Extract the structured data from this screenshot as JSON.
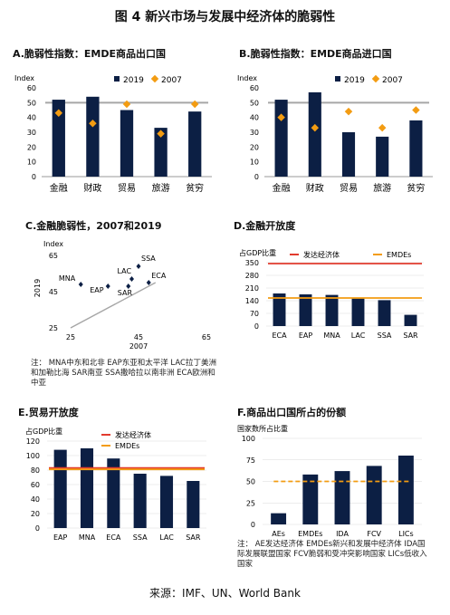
{
  "figure_title": "图 4  新兴市场与发展中经济体的脆弱性",
  "source": "来源：IMF、UN、World Bank",
  "colors": {
    "bar": "#0c1f44",
    "dot2007": "#f39c12",
    "line": "#a6a6a6",
    "red": "#e23b2e",
    "orange": "#f39c12",
    "grid": "#d9d9d9"
  },
  "chart_data": [
    {
      "id": "A",
      "type": "bar",
      "title": "A.脆弱性指数：EMDE商品出口国",
      "ylabel": "Index",
      "ylim": [
        0,
        60
      ],
      "yticks": [
        0,
        10,
        20,
        30,
        40,
        50,
        60
      ],
      "categories": [
        "金融",
        "财政",
        "贸易",
        "旅游",
        "贫穷"
      ],
      "series": [
        {
          "name": "2019",
          "type": "bar",
          "values": [
            52,
            54,
            45,
            33,
            44
          ]
        },
        {
          "name": "2007",
          "type": "marker",
          "values": [
            43,
            36,
            49,
            29,
            49
          ]
        }
      ],
      "reference_line": 50
    },
    {
      "id": "B",
      "type": "bar",
      "title": "B.脆弱性指数：EMDE商品进口国",
      "ylabel": "Index",
      "ylim": [
        0,
        60
      ],
      "yticks": [
        0,
        10,
        20,
        30,
        40,
        50,
        60
      ],
      "categories": [
        "金融",
        "财政",
        "贸易",
        "旅游",
        "贫穷"
      ],
      "series": [
        {
          "name": "2019",
          "type": "bar",
          "values": [
            52,
            57,
            30,
            27,
            38
          ]
        },
        {
          "name": "2007",
          "type": "marker",
          "values": [
            40,
            33,
            44,
            33,
            45
          ]
        }
      ],
      "reference_line": 50
    },
    {
      "id": "C",
      "type": "scatter",
      "title": "C.金融脆弱性，2007和2019",
      "ylabel_top": "Index",
      "ylabel": "2019",
      "xlabel": "2007",
      "xlim": [
        25,
        65
      ],
      "ylim": [
        25,
        65
      ],
      "xticks": [
        25,
        45,
        65
      ],
      "yticks": [
        25,
        45,
        65
      ],
      "points": [
        {
          "label": "SSA",
          "x": 45,
          "y": 59
        },
        {
          "label": "MNA",
          "x": 28,
          "y": 49
        },
        {
          "label": "LAC",
          "x": 43,
          "y": 52
        },
        {
          "label": "ECA",
          "x": 48,
          "y": 50
        },
        {
          "label": "EAP",
          "x": 36,
          "y": 48
        },
        {
          "label": "SAR",
          "x": 42,
          "y": 48
        }
      ],
      "diagonal": true,
      "note": "注：  MNA中东和北非 EAP东亚和太平洋 LAC拉丁美洲和加勒比海 SAR南亚 SSA撒哈拉以南非洲 ECA欧洲和中亚"
    },
    {
      "id": "D",
      "type": "bar",
      "title": "D.金融开放度",
      "ylabel": "占GDP比重",
      "ylim": [
        0,
        350
      ],
      "yticks": [
        0,
        70,
        140,
        210,
        280,
        350
      ],
      "categories": [
        "ECA",
        "EAP",
        "MNA",
        "LAC",
        "SSA",
        "SAR"
      ],
      "values": [
        180,
        175,
        172,
        152,
        143,
        62
      ],
      "hlines": [
        {
          "name": "发达经济体",
          "value": 345,
          "color": "#e23b2e"
        },
        {
          "name": "EMDEs",
          "value": 155,
          "color": "#f39c12"
        }
      ]
    },
    {
      "id": "E",
      "type": "bar",
      "title": "E.贸易开放度",
      "ylabel": "占GDP比重",
      "ylim": [
        0,
        120
      ],
      "yticks": [
        0,
        20,
        40,
        60,
        80,
        100,
        120
      ],
      "categories": [
        "EAP",
        "MNA",
        "ECA",
        "SSA",
        "LAC",
        "SAR"
      ],
      "values": [
        108,
        110,
        96,
        75,
        72,
        65
      ],
      "hlines": [
        {
          "name": "发达经济体",
          "value": 83,
          "color": "#e23b2e"
        },
        {
          "name": "EMDEs",
          "value": 81,
          "color": "#f39c12"
        }
      ]
    },
    {
      "id": "F",
      "type": "bar",
      "title": "F.商品出口国所占的份额",
      "ylabel": "国家数所占比重",
      "ylim": [
        0,
        100
      ],
      "yticks": [
        0,
        25,
        50,
        75,
        100
      ],
      "categories": [
        "AEs",
        "EMDEs",
        "IDA",
        "FCV",
        "LICs"
      ],
      "values": [
        13,
        58,
        62,
        68,
        80
      ],
      "hline": {
        "value": 50,
        "color": "#f39c12",
        "dashed": true
      },
      "note": "注：  AE发达经济体 EMDEs新兴和发展中经济体 IDA国际发展联盟国家 FCV脆弱和受冲突影响国家 LICs低收入国家"
    }
  ]
}
